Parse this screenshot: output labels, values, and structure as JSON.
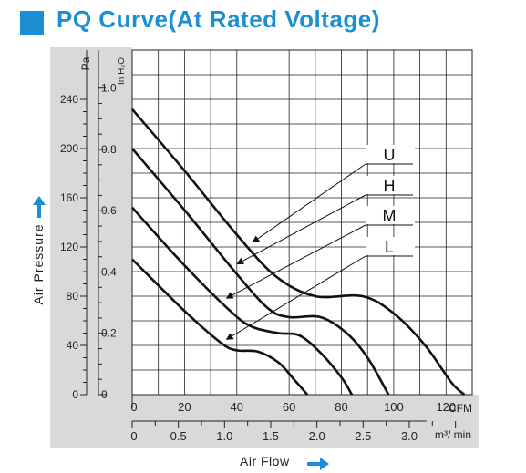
{
  "title": "PQ Curve(At Rated Voltage)",
  "colors": {
    "accent": "#1a8fd1",
    "panel": "#d9d9d9",
    "curve": "#111111",
    "grid": "#222222"
  },
  "y_axis_title": "Air Pressure",
  "x_axis_title": "Air Flow",
  "chart_data": {
    "type": "line",
    "title": "PQ Curve(At Rated Voltage)",
    "xlabel": "Air Flow",
    "ylabel": "Air Pressure",
    "x_unit_primary": "CFM",
    "x_unit_secondary": "m³/ min",
    "y_unit_primary": "Pa",
    "y_unit_secondary": "In H₂O",
    "xlim": [
      0,
      130
    ],
    "ylim": [
      0,
      280
    ],
    "x_ticks_cfm": [
      "0",
      "20",
      "40",
      "60",
      "80",
      "100",
      "120"
    ],
    "x_ticks_m3min": [
      "0",
      "0.5",
      "1.0",
      "1.5",
      "2.0",
      "2.5",
      "3.0"
    ],
    "y_ticks_pa": [
      "0",
      "40",
      "80",
      "120",
      "160",
      "200",
      "240"
    ],
    "y_ticks_inh2o": [
      "0",
      "0.2",
      "0.4",
      "0.6",
      "0.8",
      "1.0"
    ],
    "grid": true,
    "series": [
      {
        "name": "U",
        "points": [
          [
            0,
            232
          ],
          [
            20,
            182
          ],
          [
            40,
            130
          ],
          [
            55,
            96
          ],
          [
            70,
            80
          ],
          [
            88,
            80
          ],
          [
            100,
            66
          ],
          [
            112,
            40
          ],
          [
            122,
            10
          ],
          [
            127,
            0
          ]
        ]
      },
      {
        "name": "H",
        "points": [
          [
            0,
            200
          ],
          [
            20,
            150
          ],
          [
            40,
            98
          ],
          [
            52,
            70
          ],
          [
            60,
            63
          ],
          [
            72,
            63
          ],
          [
            82,
            50
          ],
          [
            90,
            30
          ],
          [
            98,
            0
          ]
        ]
      },
      {
        "name": "M",
        "points": [
          [
            0,
            152
          ],
          [
            20,
            105
          ],
          [
            38,
            67
          ],
          [
            46,
            55
          ],
          [
            56,
            50
          ],
          [
            64,
            48
          ],
          [
            72,
            34
          ],
          [
            80,
            14
          ],
          [
            84,
            0
          ]
        ]
      },
      {
        "name": "L",
        "points": [
          [
            0,
            110
          ],
          [
            20,
            68
          ],
          [
            34,
            42
          ],
          [
            40,
            36
          ],
          [
            48,
            35
          ],
          [
            56,
            26
          ],
          [
            62,
            12
          ],
          [
            67,
            0
          ]
        ]
      }
    ]
  }
}
